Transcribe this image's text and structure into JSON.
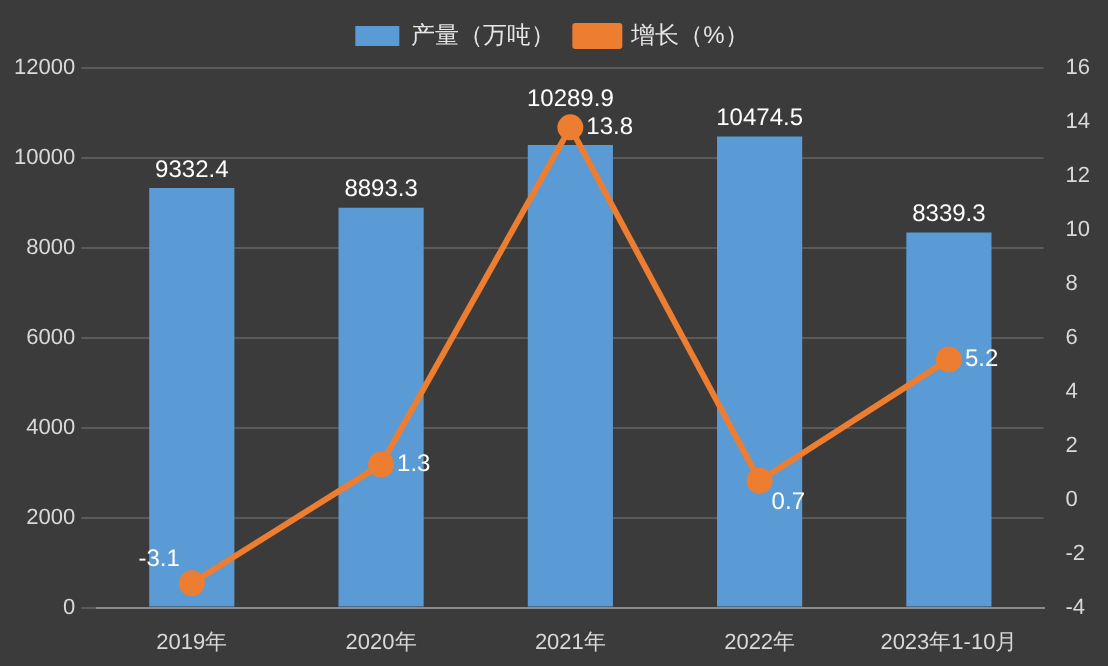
{
  "chart_data": {
    "type": "bar",
    "categories": [
      "2019年",
      "2020年",
      "2021年",
      "2022年",
      "2023年1-10月"
    ],
    "series": [
      {
        "name": "产量（万吨）",
        "color": "#5b9bd5",
        "values": [
          9332.4,
          8893.3,
          10289.9,
          10474.5,
          8339.3
        ]
      },
      {
        "name": "增长（%）",
        "type": "line",
        "axis": "y2",
        "color": "#ed7d31",
        "values": [
          -3.1,
          1.3,
          13.8,
          0.7,
          5.2
        ]
      }
    ],
    "ylim": [
      0,
      12000
    ],
    "yticks": [
      0,
      2000,
      4000,
      6000,
      8000,
      10000,
      12000
    ],
    "y2lim": [
      -4,
      16
    ],
    "y2ticks": [
      -4,
      -2,
      0,
      2,
      4,
      6,
      8,
      10,
      12,
      14,
      16
    ],
    "grid": "y",
    "legend": "top",
    "marker": "circle",
    "line_style": "solid",
    "data_labels": true
  }
}
